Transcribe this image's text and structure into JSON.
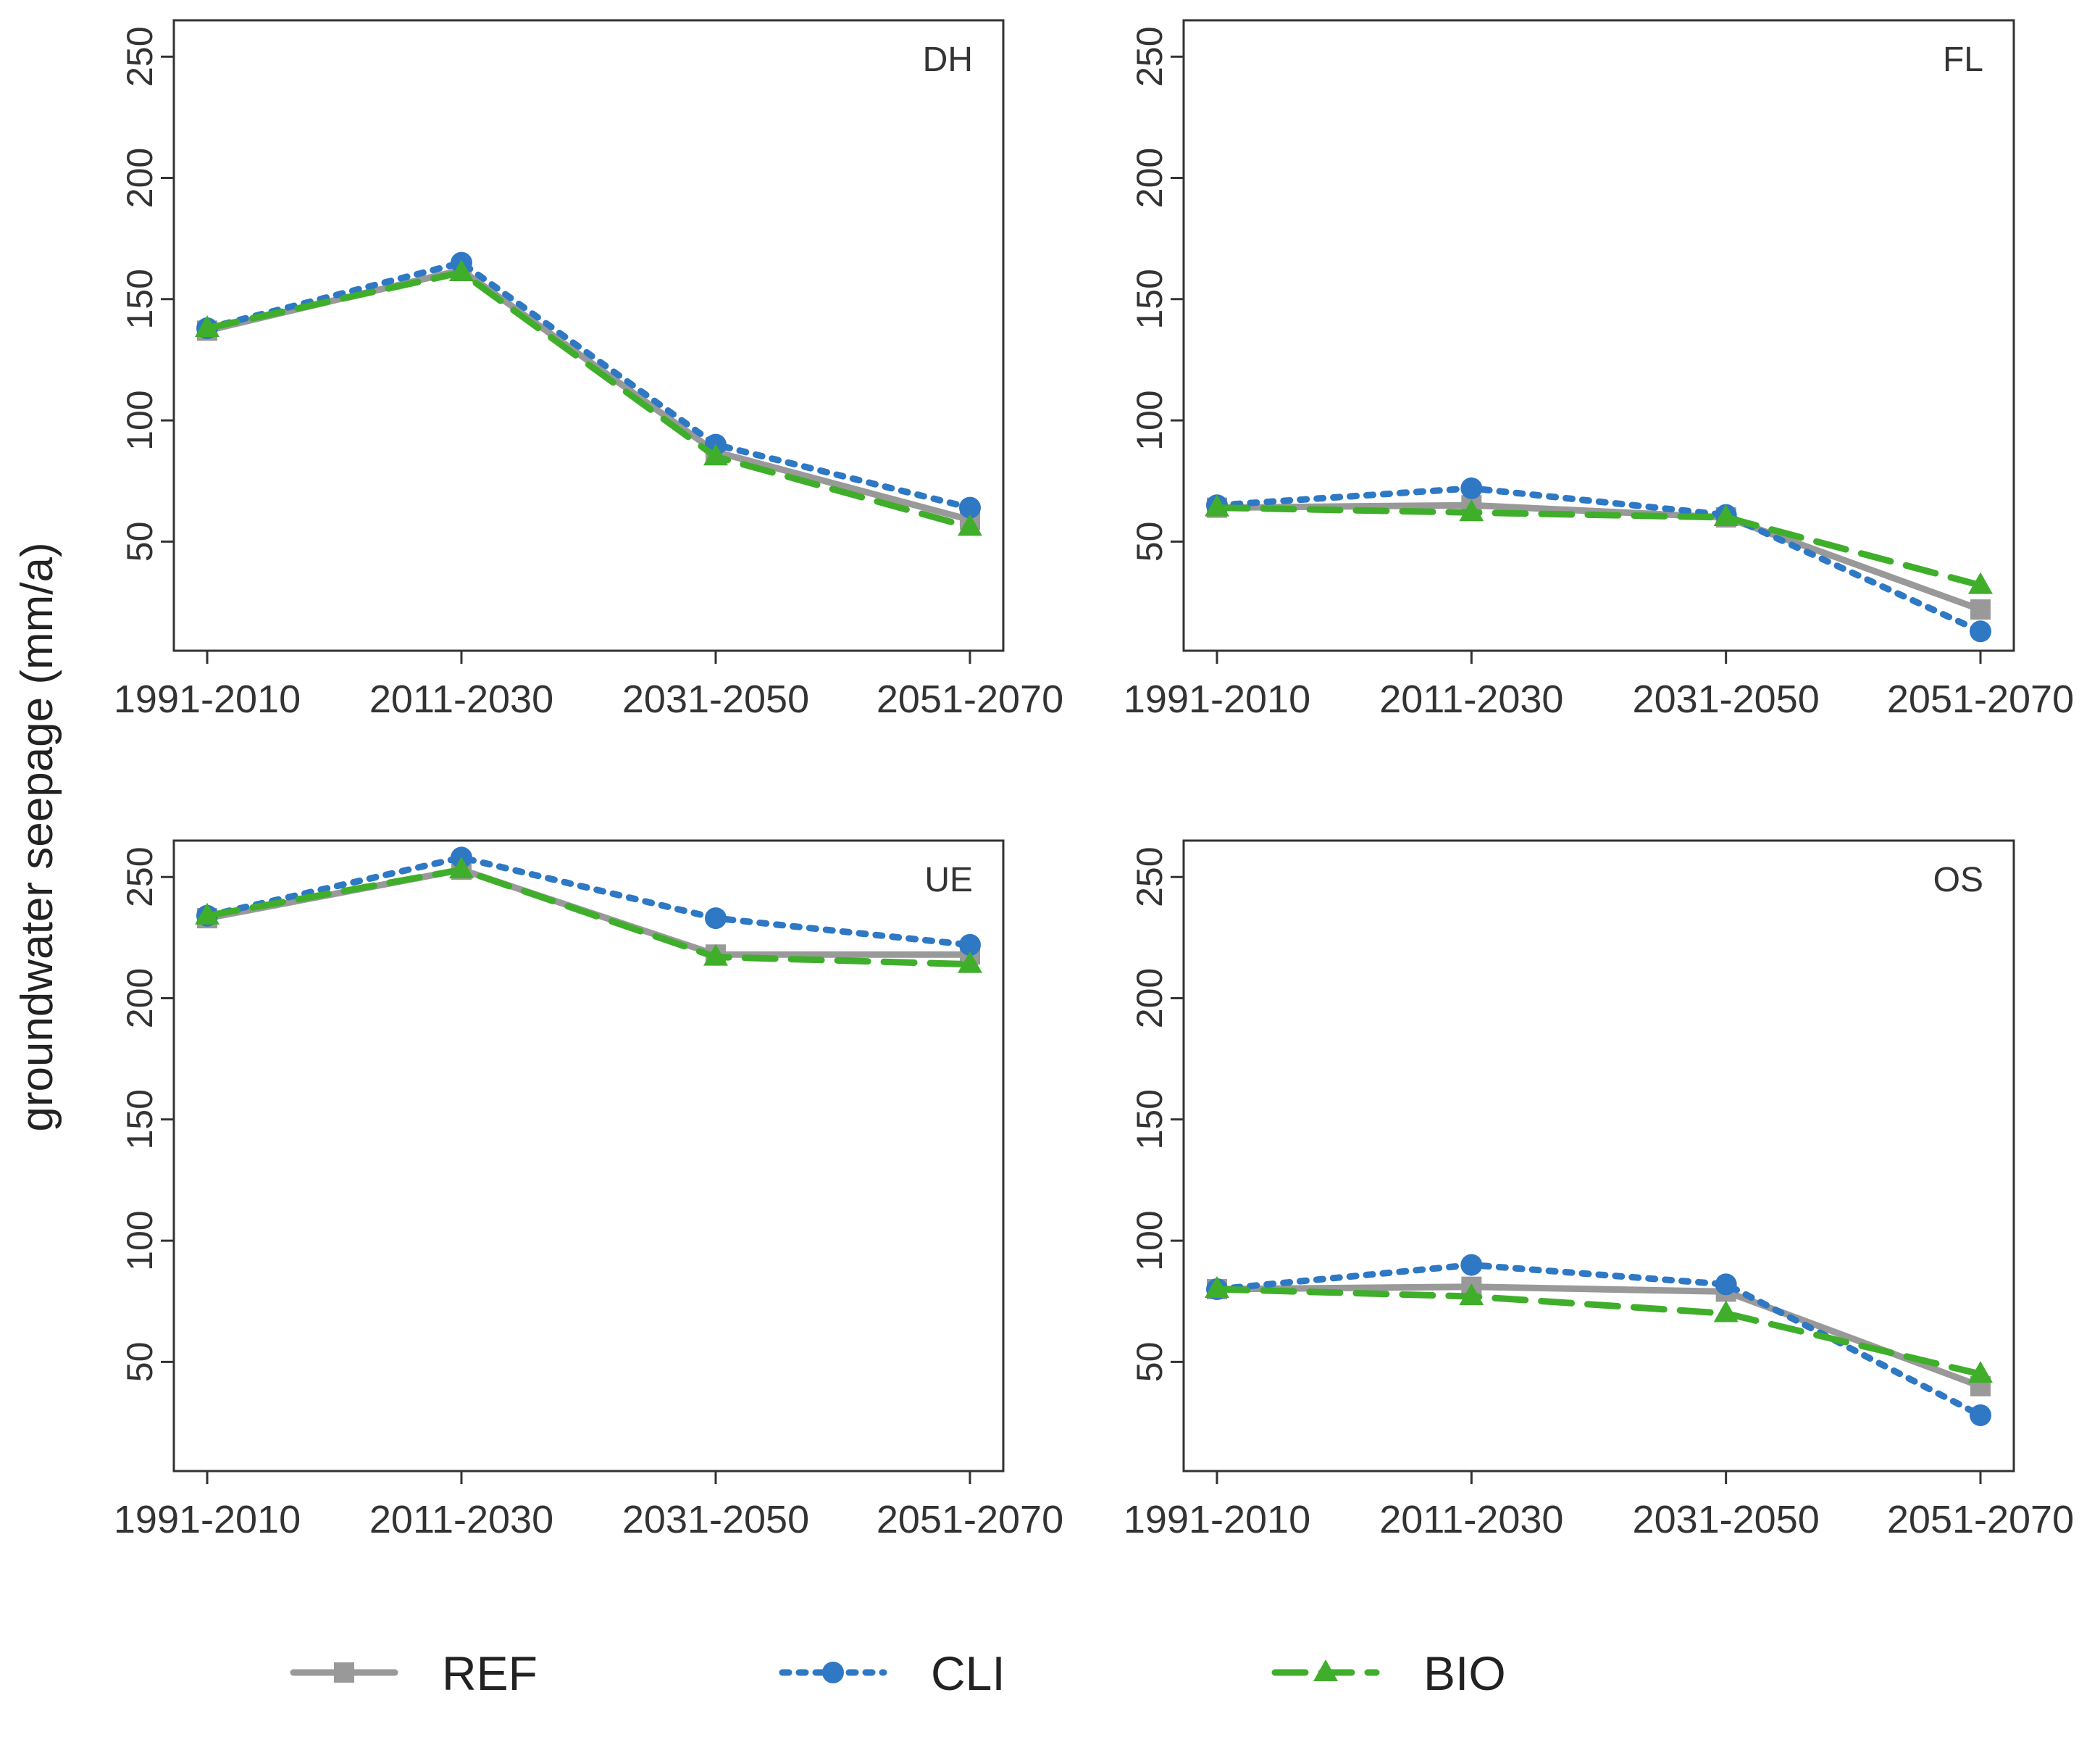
{
  "chart_data": {
    "type": "line",
    "ylabel": "groundwater seepage  (mm/a)",
    "categories": [
      "1991-2010",
      "2011-2030",
      "2031-2050",
      "2051-2070"
    ],
    "ylim": [
      5,
      265
    ],
    "yticks": [
      50,
      100,
      150,
      200,
      250
    ],
    "grid": false,
    "legend_position": "bottom",
    "legend": [
      {
        "key": "ref",
        "label": "REF",
        "color": "#999999",
        "marker": "square",
        "line": "solid"
      },
      {
        "key": "cli",
        "label": "CLI",
        "color": "#2e78c4",
        "marker": "circle",
        "line": "dotted"
      },
      {
        "key": "bio",
        "label": "BIO",
        "color": "#3fae2a",
        "marker": "triangle",
        "line": "dashed"
      }
    ],
    "panels": [
      {
        "label": "DH",
        "series": [
          {
            "key": "ref",
            "values": [
              137,
              162,
              87,
              59
            ]
          },
          {
            "key": "cli",
            "values": [
              138,
              165,
              90,
              64
            ]
          },
          {
            "key": "bio",
            "values": [
              138,
              161,
              85,
              56
            ]
          }
        ]
      },
      {
        "label": "FL",
        "series": [
          {
            "key": "ref",
            "values": [
              64,
              65,
              60,
              22
            ]
          },
          {
            "key": "cli",
            "values": [
              65,
              72,
              61,
              13
            ]
          },
          {
            "key": "bio",
            "values": [
              64,
              62,
              60,
              32
            ]
          }
        ]
      },
      {
        "label": "UE",
        "series": [
          {
            "key": "ref",
            "values": [
              233,
              253,
              218,
              218
            ]
          },
          {
            "key": "cli",
            "values": [
              234,
              258,
              233,
              222
            ]
          },
          {
            "key": "bio",
            "values": [
              234,
              253,
              217,
              214
            ]
          }
        ]
      },
      {
        "label": "OS",
        "series": [
          {
            "key": "ref",
            "values": [
              80,
              81,
              79,
              40
            ]
          },
          {
            "key": "cli",
            "values": [
              80,
              90,
              82,
              28
            ]
          },
          {
            "key": "bio",
            "values": [
              80,
              77,
              70,
              45
            ]
          }
        ]
      }
    ]
  }
}
